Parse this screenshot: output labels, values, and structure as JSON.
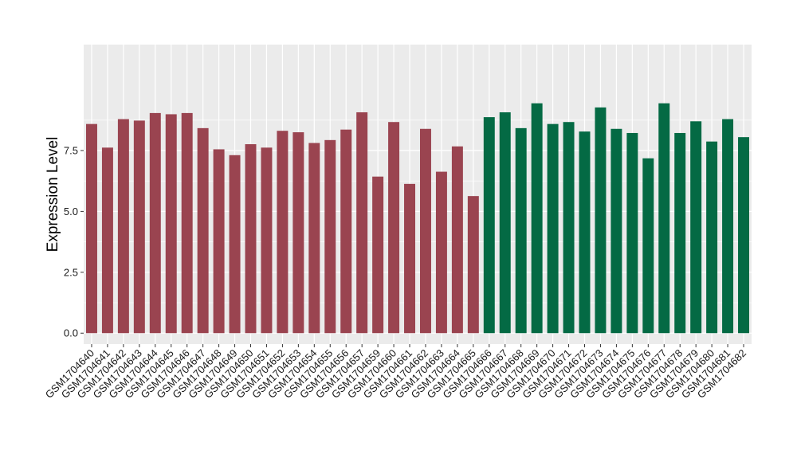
{
  "chart_data": {
    "type": "bar",
    "title": "",
    "xlabel": "",
    "ylabel": "Expression Level",
    "ylim": [
      -0.45,
      11.85
    ],
    "yticks": [
      0.0,
      2.5,
      5.0,
      7.5
    ],
    "ytick_labels": [
      "0.0",
      "2.5",
      "5.0",
      "7.5"
    ],
    "grid": true,
    "legend": "none",
    "colors": {
      "group_a": "#9a4450",
      "group_b": "#046a44",
      "panel": "#ebebeb",
      "gridline": "#ffffff"
    },
    "categories": [
      "GSM1704640",
      "GSM1704641",
      "GSM1704642",
      "GSM1704643",
      "GSM1704644",
      "GSM1704645",
      "GSM1704646",
      "GSM1704647",
      "GSM1704648",
      "GSM1704649",
      "GSM1704650",
      "GSM1704651",
      "GSM1704652",
      "GSM1704653",
      "GSM1704654",
      "GSM1704655",
      "GSM1704656",
      "GSM1704657",
      "GSM1704659",
      "GSM1704660",
      "GSM1704661",
      "GSM1704662",
      "GSM1704663",
      "GSM1704664",
      "GSM1704665",
      "GSM1704666",
      "GSM1704667",
      "GSM1704668",
      "GSM1704669",
      "GSM1704670",
      "GSM1704671",
      "GSM1704672",
      "GSM1704673",
      "GSM1704674",
      "GSM1704675",
      "GSM1704676",
      "GSM1704677",
      "GSM1704678",
      "GSM1704679",
      "GSM1704680",
      "GSM1704681",
      "GSM1704682"
    ],
    "values": [
      8.59,
      7.62,
      8.79,
      8.73,
      9.04,
      8.99,
      9.04,
      8.42,
      7.55,
      7.31,
      7.76,
      7.62,
      8.31,
      8.25,
      7.81,
      7.93,
      8.36,
      9.07,
      6.43,
      8.67,
      6.13,
      8.39,
      6.63,
      7.67,
      5.63,
      8.87,
      9.07,
      8.42,
      9.44,
      8.59,
      8.67,
      8.28,
      9.27,
      8.39,
      8.22,
      7.18,
      9.44,
      8.22,
      8.7,
      7.87,
      8.79,
      8.05
    ],
    "group_assignment": [
      "a",
      "a",
      "a",
      "a",
      "a",
      "a",
      "a",
      "a",
      "a",
      "a",
      "a",
      "a",
      "a",
      "a",
      "a",
      "a",
      "a",
      "a",
      "a",
      "a",
      "a",
      "a",
      "a",
      "a",
      "a",
      "b",
      "b",
      "b",
      "b",
      "b",
      "b",
      "b",
      "b",
      "b",
      "b",
      "b",
      "b",
      "b",
      "b",
      "b",
      "b",
      "b"
    ]
  }
}
